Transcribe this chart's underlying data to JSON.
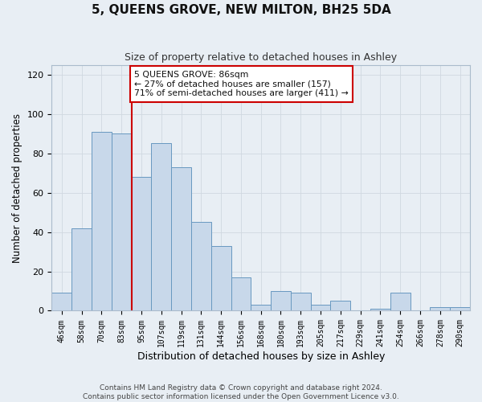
{
  "title": "5, QUEENS GROVE, NEW MILTON, BH25 5DA",
  "subtitle": "Size of property relative to detached houses in Ashley",
  "xlabel": "Distribution of detached houses by size in Ashley",
  "ylabel": "Number of detached properties",
  "bar_color": "#c8d8ea",
  "bar_edge_color": "#6898c0",
  "categories": [
    "46sqm",
    "58sqm",
    "70sqm",
    "83sqm",
    "95sqm",
    "107sqm",
    "119sqm",
    "131sqm",
    "144sqm",
    "156sqm",
    "168sqm",
    "180sqm",
    "193sqm",
    "205sqm",
    "217sqm",
    "229sqm",
    "241sqm",
    "254sqm",
    "266sqm",
    "278sqm",
    "290sqm"
  ],
  "values": [
    9,
    42,
    91,
    90,
    68,
    85,
    73,
    45,
    33,
    17,
    3,
    10,
    9,
    3,
    5,
    0,
    1,
    9,
    0,
    2,
    2
  ],
  "ylim": [
    0,
    125
  ],
  "yticks": [
    0,
    20,
    40,
    60,
    80,
    100,
    120
  ],
  "vline_x": 3.5,
  "vline_color": "#cc0000",
  "annotation_text": "5 QUEENS GROVE: 86sqm\n← 27% of detached houses are smaller (157)\n71% of semi-detached houses are larger (411) →",
  "annotation_box_color": "#ffffff",
  "annotation_box_edge": "#cc0000",
  "footer_text": "Contains HM Land Registry data © Crown copyright and database right 2024.\nContains public sector information licensed under the Open Government Licence v3.0.",
  "background_color": "#e8eef4",
  "plot_bg_color": "#e8eef4",
  "grid_color": "#d0d8e0"
}
